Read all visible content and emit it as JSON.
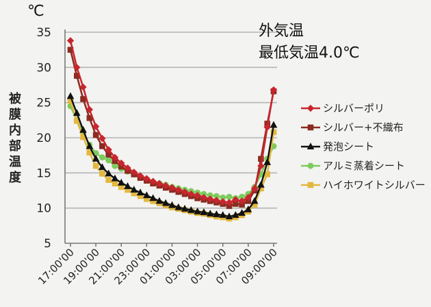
{
  "chart_data": {
    "type": "line",
    "unit": "℃",
    "ylabel": "被膜内部温度",
    "ylim": [
      5,
      35
    ],
    "yticks": [
      5,
      10,
      15,
      20,
      25,
      30,
      35
    ],
    "grid": true,
    "legend_position": "right",
    "annotation": [
      "外気温",
      "最低気温4.0℃"
    ],
    "x": [
      "17:00",
      "17:30",
      "18:00",
      "18:30",
      "19:00",
      "19:30",
      "20:00",
      "20:30",
      "21:00",
      "21:30",
      "22:00",
      "22:30",
      "23:00",
      "23:30",
      "00:00",
      "00:30",
      "01:00",
      "01:30",
      "02:00",
      "02:30",
      "03:00",
      "03:30",
      "04:00",
      "04:30",
      "05:00",
      "05:30",
      "06:00",
      "06:30",
      "07:00",
      "07:30",
      "08:00",
      "08:30",
      "09:00"
    ],
    "xtick_labels": [
      "17:00'00",
      "19:00'00",
      "21:00'00",
      "23:00'00",
      "01:00'00",
      "03:00'00",
      "05:00'00",
      "07:00'00",
      "09:00'00"
    ],
    "series": [
      {
        "name": "シルバーポリ",
        "color": "#c8262f",
        "marker": "diamond",
        "values": [
          33.8,
          30.0,
          27.2,
          24.0,
          21.6,
          19.9,
          18.3,
          17.2,
          16.4,
          15.7,
          15.1,
          14.6,
          14.2,
          13.8,
          13.5,
          13.2,
          12.9,
          12.6,
          12.3,
          12.0,
          11.8,
          11.5,
          11.3,
          11.1,
          10.9,
          10.8,
          11.2,
          11.0,
          11.5,
          12.8,
          16.0,
          21.5,
          26.8
        ]
      },
      {
        "name": "シルバー+不織布",
        "color": "#8b2c20",
        "marker": "square",
        "values": [
          32.5,
          28.8,
          25.5,
          22.8,
          20.4,
          18.8,
          17.6,
          16.7,
          15.9,
          15.3,
          14.8,
          14.3,
          13.9,
          13.5,
          13.2,
          12.9,
          12.6,
          12.3,
          12.0,
          11.7,
          11.4,
          11.2,
          11.0,
          10.8,
          10.6,
          10.3,
          10.6,
          10.5,
          11.0,
          12.5,
          17.0,
          22.0,
          26.6
        ]
      },
      {
        "name": "発泡シート",
        "color": "#111111",
        "marker": "triangle",
        "values": [
          25.9,
          23.5,
          21.1,
          18.8,
          17.0,
          15.8,
          14.9,
          14.2,
          13.6,
          13.1,
          12.6,
          12.2,
          11.8,
          11.4,
          11.0,
          10.7,
          10.4,
          10.1,
          9.9,
          9.7,
          9.5,
          9.4,
          9.2,
          9.1,
          9.0,
          8.8,
          9.0,
          9.3,
          9.8,
          11.0,
          13.3,
          16.5,
          21.8
        ]
      },
      {
        "name": "アルミ蒸着シート",
        "color": "#7dcc5c",
        "marker": "circle",
        "values": [
          24.5,
          22.5,
          20.7,
          19.0,
          17.8,
          17.2,
          16.8,
          16.0,
          15.6,
          15.2,
          14.8,
          14.4,
          14.0,
          13.7,
          13.5,
          13.3,
          13.0,
          12.8,
          12.6,
          12.4,
          12.2,
          12.0,
          11.8,
          11.7,
          11.5,
          11.6,
          11.4,
          11.6,
          12.0,
          13.0,
          14.8,
          17.0,
          18.8
        ]
      },
      {
        "name": "ハイホワイトシルバー",
        "color": "#e3b83f",
        "marker": "square",
        "values": [
          25.3,
          22.4,
          20.1,
          17.9,
          16.0,
          14.9,
          14.0,
          13.5,
          13.0,
          12.6,
          12.1,
          11.7,
          11.3,
          11.0,
          10.7,
          10.4,
          10.1,
          9.9,
          9.7,
          9.5,
          9.3,
          9.2,
          9.0,
          8.8,
          8.7,
          8.5,
          8.7,
          9.0,
          9.5,
          10.5,
          12.8,
          14.8,
          20.8
        ]
      }
    ]
  }
}
